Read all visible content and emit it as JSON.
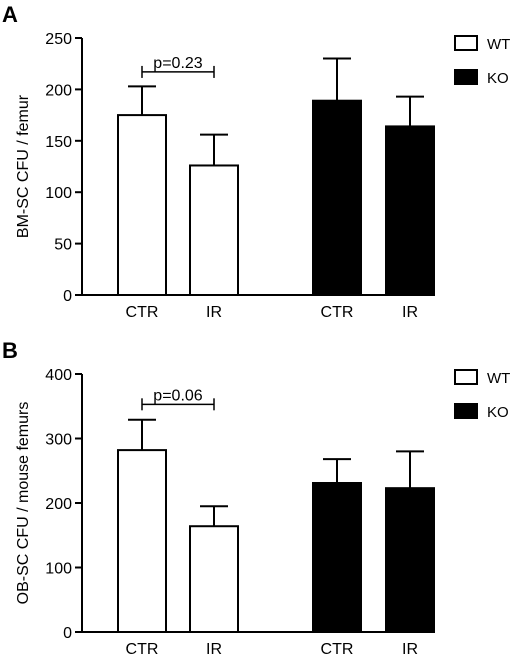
{
  "chart_data": [
    {
      "type": "bar",
      "panel_label": "A",
      "ylabel": "BM-SC CFU / femur",
      "ylim": [
        0,
        250
      ],
      "yticks": [
        0,
        50,
        100,
        150,
        200,
        250
      ],
      "groups": [
        {
          "categories": [
            "CTR",
            "IR"
          ],
          "fill": "#ffffff"
        },
        {
          "categories": [
            "CTR",
            "IR"
          ],
          "fill": "#000000"
        }
      ],
      "series": [
        {
          "name": "WT",
          "categories": [
            "CTR",
            "IR"
          ],
          "values": [
            175,
            126
          ],
          "errors": [
            28,
            30
          ],
          "color": "#ffffff"
        },
        {
          "name": "KO",
          "categories": [
            "CTR",
            "IR"
          ],
          "values": [
            189,
            164
          ],
          "errors": [
            41,
            29
          ],
          "color": "#000000"
        }
      ],
      "legend": {
        "placement": "top-right",
        "entries": [
          "WT",
          "KO"
        ]
      },
      "annotation": {
        "text": "p=0.23",
        "bracket_value": 217
      }
    },
    {
      "type": "bar",
      "panel_label": "B",
      "ylabel": "OB-SC CFU / mouse femurs",
      "ylim": [
        0,
        400
      ],
      "yticks": [
        0,
        100,
        200,
        300,
        400
      ],
      "groups": [
        {
          "categories": [
            "CTR",
            "IR"
          ],
          "fill": "#ffffff"
        },
        {
          "categories": [
            "CTR",
            "IR"
          ],
          "fill": "#000000"
        }
      ],
      "series": [
        {
          "name": "WT",
          "categories": [
            "CTR",
            "IR"
          ],
          "values": [
            282,
            164
          ],
          "errors": [
            47,
            31
          ],
          "color": "#ffffff"
        },
        {
          "name": "KO",
          "categories": [
            "CTR",
            "IR"
          ],
          "values": [
            231,
            223
          ],
          "errors": [
            37,
            57
          ],
          "color": "#000000"
        }
      ],
      "legend": {
        "placement": "top-right",
        "entries": [
          "WT",
          "KO"
        ]
      },
      "annotation": {
        "text": "p=0.06",
        "bracket_value": 353
      }
    }
  ]
}
